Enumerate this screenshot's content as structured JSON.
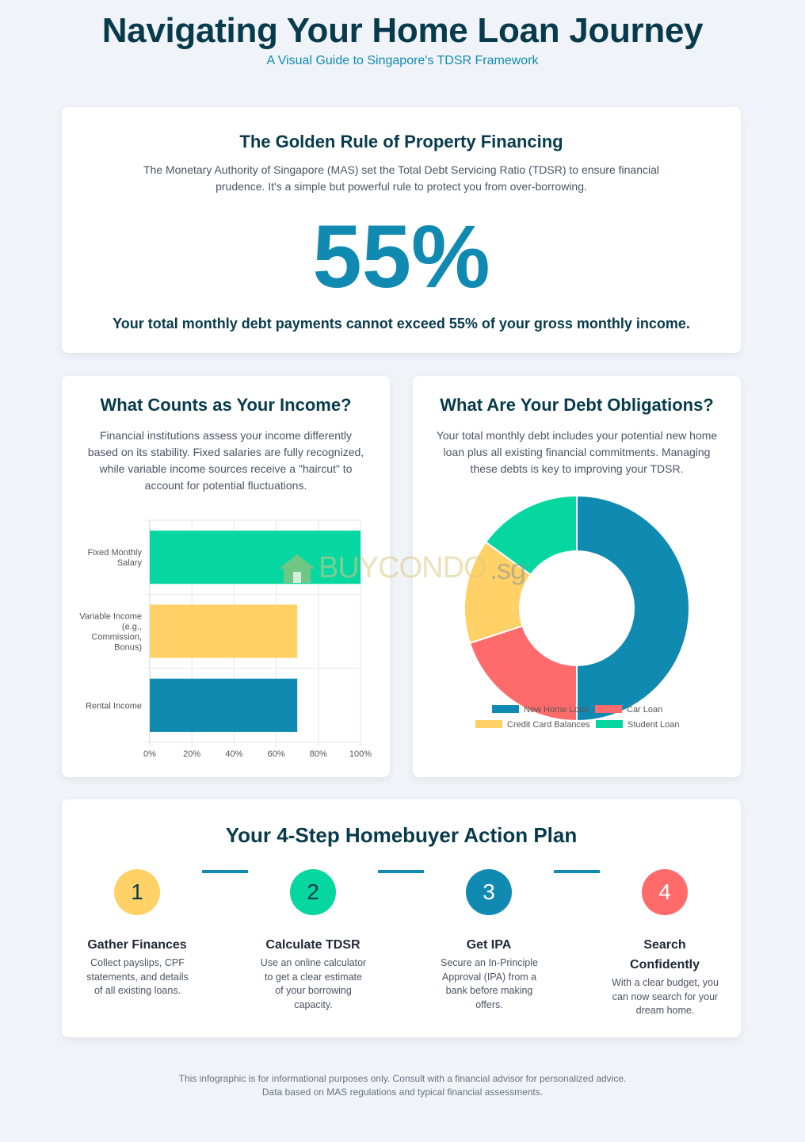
{
  "header": {
    "title": "Navigating Your Home Loan Journey",
    "subtitle": "A Visual Guide to Singapore's TDSR Framework"
  },
  "rule": {
    "title": "The Golden Rule of Property Financing",
    "description": "The Monetary Authority of Singapore (MAS) set the Total Debt Servicing Ratio (TDSR) to ensure financial prudence. It's a simple but powerful rule to protect you from over-borrowing.",
    "big_number": "55%",
    "statement": "Your total monthly debt payments cannot exceed 55% of your gross monthly income."
  },
  "income": {
    "title": "What Counts as Your Income?",
    "description": "Financial institutions assess your income differently based on its stability. Fixed salaries are fully recognized, while variable income sources receive a \"haircut\" to account for potential fluctuations."
  },
  "debt": {
    "title": "What Are Your Debt Obligations?",
    "description": "Your total monthly debt includes your potential new home loan plus all existing financial commitments. Managing these debts is key to improving your TDSR."
  },
  "chart_data": [
    {
      "type": "bar",
      "orientation": "horizontal",
      "categories": [
        [
          "Fixed Monthly",
          "Salary"
        ],
        [
          "Variable Income",
          "(e.g.,",
          "Commission,",
          "Bonus)"
        ],
        [
          "Rental Income"
        ]
      ],
      "values": [
        100,
        70,
        70
      ],
      "colors": [
        "#06d6a0",
        "#ffd166",
        "#118ab2"
      ],
      "xlim": [
        0,
        100
      ],
      "x_ticks": [
        "0%",
        "20%",
        "40%",
        "60%",
        "80%",
        "100%"
      ],
      "grid": true
    },
    {
      "type": "pie",
      "style": "doughnut",
      "labels": [
        "New Home Loan",
        "Car Loan",
        "Credit Card Balances",
        "Student Loan"
      ],
      "values": [
        50,
        20,
        15,
        15
      ],
      "colors": [
        "#118ab2",
        "#ff6b6b",
        "#ffd166",
        "#06d6a0"
      ],
      "legend": "bottom"
    }
  ],
  "plan": {
    "title": "Your 4-Step Homebuyer Action Plan",
    "steps": [
      {
        "number": "1",
        "title": "Gather Finances",
        "description": "Collect payslips, CPF statements, and details of all existing loans.",
        "color": "#ffd166"
      },
      {
        "number": "2",
        "title": "Calculate TDSR",
        "description": "Use an online calculator to get a clear estimate of your borrowing capacity.",
        "color": "#06d6a0"
      },
      {
        "number": "3",
        "title": "Get IPA",
        "description": "Secure an In-Principle Approval (IPA) from a bank before making offers.",
        "color": "#118ab2"
      },
      {
        "number": "4",
        "title": "Search Confidently",
        "description": "With a clear budget, you can now search for your dream home.",
        "color": "#ff6b6b"
      }
    ]
  },
  "footer": {
    "line1": "This infographic is for informational purposes only. Consult with a financial advisor for personalized advice.",
    "line2": "Data based on MAS regulations and typical financial assessments."
  },
  "watermark": {
    "text_buy": "BUYCONDO",
    "text_sg": ".sg"
  }
}
